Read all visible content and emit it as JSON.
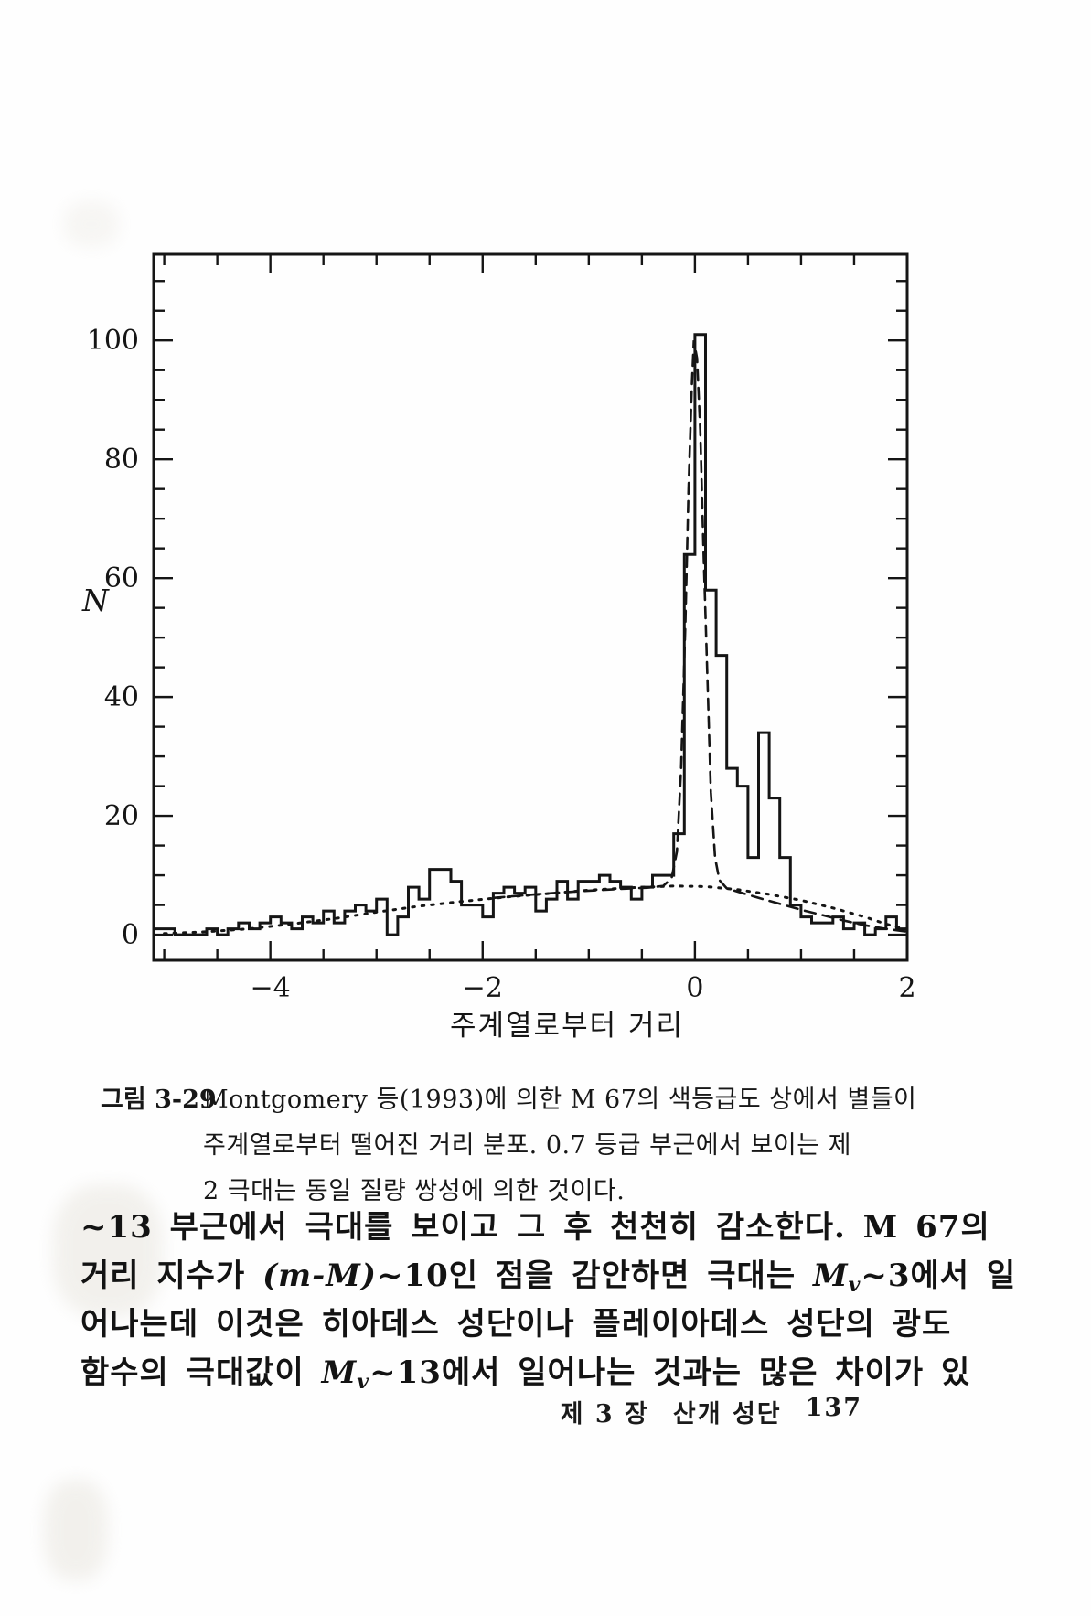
{
  "figure": {
    "caption_label": "그림 3-29",
    "caption_lines": [
      "Montgomery 등(1993)에 의한 M 67의 색등급도 상에서 별들이",
      "주계열로부터 떨어진 거리 분포. 0.7 등급 부근에서 보이는 제",
      "2 극대는 동일 질량 쌍성에 의한 것이다."
    ]
  },
  "body": {
    "line1": "~13 부근에서 극대를 보이고 그 후 천천히 감소한다. M 67의",
    "line2": {
      "t1": "거리 지수가 ",
      "m1": "(m-M)",
      "t2": "~10인 점을 감안하면 극대는 ",
      "m2": "M",
      "s2": "v",
      "t3": "~3에서 일"
    },
    "line3": "어나는데 이것은 히아데스 성단이나 플레이아데스 성단의 광도",
    "line4": {
      "t1": "함수의 극대값이 ",
      "m1": "M",
      "s1": "v",
      "t2": "~13에서 일어나는 것과는 많은 차이가 있"
    }
  },
  "footer": {
    "chapter": "제 3 장",
    "section": "산개 성단",
    "page_number": "137"
  },
  "chart_data": {
    "type": "bar",
    "style": "step-histogram-outline",
    "title": "",
    "xlabel": "주계열로부터 거리",
    "ylabel": "N",
    "xlim": [
      -5.1,
      2.0
    ],
    "ylim": [
      -4.3,
      114.5
    ],
    "grid": false,
    "legend": "none",
    "x_major_ticks": [
      -4,
      -2,
      0,
      2
    ],
    "x_tick_labels": [
      "−4",
      "−2",
      "0",
      "2"
    ],
    "x_minor_step": 0.5,
    "y_major_ticks": [
      0,
      20,
      40,
      60,
      80,
      100
    ],
    "y_tick_labels": [
      "0",
      "20",
      "40",
      "60",
      "80",
      "100"
    ],
    "y_minor_step": 5,
    "ink_color": "#151515",
    "bin_start": -5.1,
    "bin_width": 0.1,
    "bin_values": [
      1,
      1,
      0,
      0,
      0,
      1,
      0,
      1,
      2,
      1,
      2,
      3,
      2,
      1,
      3,
      2,
      4,
      2,
      4,
      5,
      4,
      6,
      0,
      3,
      8,
      6,
      11,
      11,
      9,
      5,
      5,
      3,
      7,
      8,
      7,
      8,
      4,
      6,
      9,
      6,
      9,
      9,
      10,
      9,
      8,
      6,
      8,
      10,
      10,
      17,
      64,
      101,
      58,
      47,
      28,
      25,
      13,
      34,
      23,
      13,
      5,
      3,
      2,
      2,
      3,
      1,
      2,
      0,
      1,
      3,
      1
    ],
    "curves": [
      {
        "name": "single-star-background-dotted",
        "style": "dotted",
        "points": [
          [
            -5,
            0.2
          ],
          [
            -4.6,
            0.5
          ],
          [
            -4.2,
            1.0
          ],
          [
            -3.8,
            1.8
          ],
          [
            -3.4,
            2.7
          ],
          [
            -3.0,
            3.8
          ],
          [
            -2.6,
            4.8
          ],
          [
            -2.2,
            5.6
          ],
          [
            -1.8,
            6.3
          ],
          [
            -1.4,
            6.9
          ],
          [
            -1.0,
            7.5
          ],
          [
            -0.6,
            7.9
          ],
          [
            -0.2,
            8.2
          ],
          [
            0.1,
            8.1
          ],
          [
            0.4,
            7.6
          ],
          [
            0.7,
            6.8
          ],
          [
            1.0,
            5.8
          ],
          [
            1.3,
            4.5
          ],
          [
            1.6,
            3.0
          ],
          [
            1.8,
            1.8
          ],
          [
            2.0,
            0.9
          ]
        ]
      },
      {
        "name": "main-sequence-gaussian-dashed",
        "style": "dashed",
        "points": [
          [
            -1.9,
            6.2
          ],
          [
            -1.5,
            6.8
          ],
          [
            -1.1,
            7.3
          ],
          [
            -0.7,
            7.7
          ],
          [
            -0.45,
            7.9
          ],
          [
            -0.3,
            8.2
          ],
          [
            -0.22,
            9.5
          ],
          [
            -0.17,
            14
          ],
          [
            -0.13,
            28
          ],
          [
            -0.09,
            52
          ],
          [
            -0.06,
            75
          ],
          [
            -0.03,
            92
          ],
          [
            -0.01,
            100
          ],
          [
            0.02,
            97
          ],
          [
            0.05,
            85
          ],
          [
            0.08,
            65
          ],
          [
            0.12,
            42
          ],
          [
            0.15,
            24
          ],
          [
            0.19,
            13
          ],
          [
            0.23,
            9.2
          ],
          [
            0.3,
            7.8
          ],
          [
            0.45,
            7.0
          ],
          [
            0.6,
            6.2
          ],
          [
            0.8,
            5.2
          ],
          [
            1.0,
            4.2
          ],
          [
            1.2,
            3.3
          ],
          [
            1.4,
            2.4
          ],
          [
            1.6,
            1.6
          ],
          [
            1.8,
            1.0
          ],
          [
            2.0,
            0.5
          ]
        ]
      }
    ],
    "annotations": {
      "main_peak": {
        "x": 0.0,
        "n": 101
      },
      "secondary_peak": {
        "x": 0.65,
        "n": 34
      }
    }
  }
}
